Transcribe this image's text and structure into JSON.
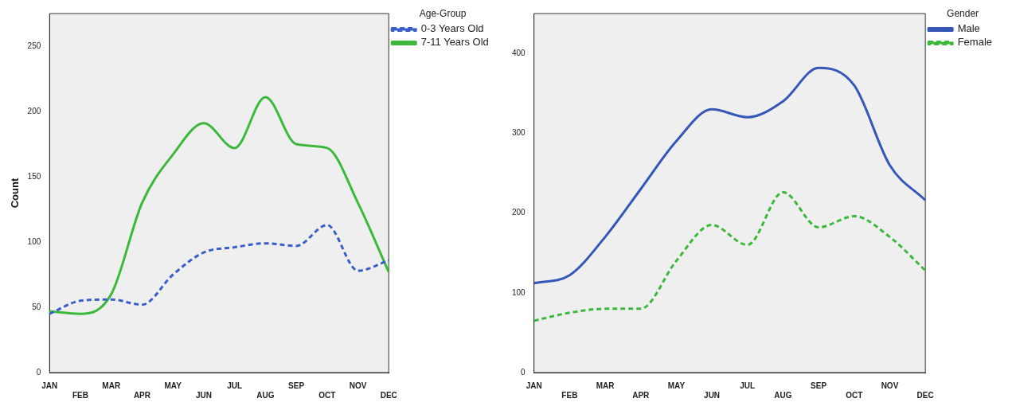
{
  "chart_data": [
    {
      "type": "line",
      "ylabel": "Count",
      "legend_title": "Age-Group",
      "legend": "top right",
      "grid": false,
      "categories": [
        "JAN",
        "FEB",
        "MAR",
        "APR",
        "MAY",
        "JUN",
        "JUL",
        "AUG",
        "SEP",
        "OCT",
        "NOV",
        "DEC"
      ],
      "ylim": [
        0,
        275
      ],
      "yticks": [
        0,
        50,
        100,
        150,
        200,
        250
      ],
      "series": [
        {
          "name": "0-3 Years Old",
          "color": "#3b5fc8",
          "line_style": "dashed",
          "values": [
            45,
            55,
            56,
            52,
            75,
            92,
            96,
            99,
            97,
            113,
            78,
            86
          ]
        },
        {
          "name": "7-11 Years Old",
          "color": "#3cb83c",
          "line_style": "solid",
          "values": [
            47,
            45,
            60,
            130,
            167,
            191,
            172,
            211,
            175,
            172,
            130,
            77
          ]
        }
      ]
    },
    {
      "type": "line",
      "legend_title": "Gender",
      "legend": "top right",
      "grid": false,
      "categories": [
        "JAN",
        "FEB",
        "MAR",
        "APR",
        "MAY",
        "JUN",
        "JUL",
        "AUG",
        "SEP",
        "OCT",
        "NOV",
        "DEC"
      ],
      "ylim": [
        0,
        450
      ],
      "yticks": [
        0,
        100,
        200,
        300,
        400
      ],
      "series": [
        {
          "name": "Male",
          "color": "#3457b8",
          "line_style": "solid",
          "values": [
            112,
            122,
            170,
            230,
            290,
            330,
            320,
            340,
            382,
            360,
            260,
            216
          ]
        },
        {
          "name": "Female",
          "color": "#3cb83c",
          "line_style": "dashed",
          "values": [
            65,
            75,
            80,
            80,
            140,
            185,
            160,
            226,
            182,
            196,
            170,
            128
          ]
        }
      ]
    }
  ]
}
